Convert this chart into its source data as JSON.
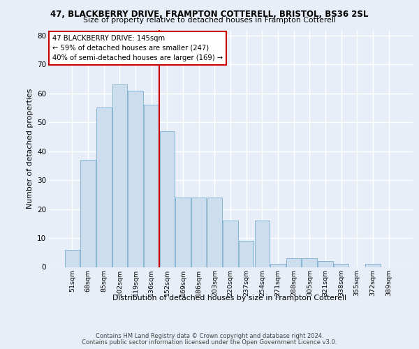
{
  "title1": "47, BLACKBERRY DRIVE, FRAMPTON COTTERELL, BRISTOL, BS36 2SL",
  "title2": "Size of property relative to detached houses in Frampton Cotterell",
  "xlabel": "Distribution of detached houses by size in Frampton Cotterell",
  "ylabel": "Number of detached properties",
  "categories": [
    "51sqm",
    "68sqm",
    "85sqm",
    "102sqm",
    "119sqm",
    "136sqm",
    "152sqm",
    "169sqm",
    "186sqm",
    "203sqm",
    "220sqm",
    "237sqm",
    "254sqm",
    "271sqm",
    "288sqm",
    "305sqm",
    "321sqm",
    "338sqm",
    "355sqm",
    "372sqm",
    "389sqm"
  ],
  "values": [
    6,
    37,
    55,
    63,
    61,
    56,
    47,
    24,
    24,
    24,
    16,
    9,
    16,
    1,
    3,
    3,
    2,
    1,
    0,
    1,
    0
  ],
  "bar_color": "#ccdded",
  "bar_edge_color": "#7aafce",
  "vline_x": 5.5,
  "annotation_line1": "47 BLACKBERRY DRIVE: 145sqm",
  "annotation_line2": "← 59% of detached houses are smaller (247)",
  "annotation_line3": "40% of semi-detached houses are larger (169) →",
  "annotation_box_color": "#ffffff",
  "annotation_box_edge": "#cc0000",
  "vline_color": "#cc0000",
  "ylim": [
    0,
    82
  ],
  "yticks": [
    0,
    10,
    20,
    30,
    40,
    50,
    60,
    70,
    80
  ],
  "footer1": "Contains HM Land Registry data © Crown copyright and database right 2024.",
  "footer2": "Contains public sector information licensed under the Open Government Licence v3.0.",
  "bg_color": "#e8eef7",
  "grid_color": "#ffffff"
}
